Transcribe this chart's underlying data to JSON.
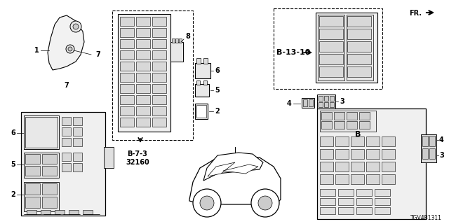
{
  "background_color": "#ffffff",
  "part_number": "TGV4B1311",
  "fr_label": "FR.",
  "b73_line1": "B-7-3",
  "b73_line2": "32160",
  "b1310_label": "B-13-10"
}
